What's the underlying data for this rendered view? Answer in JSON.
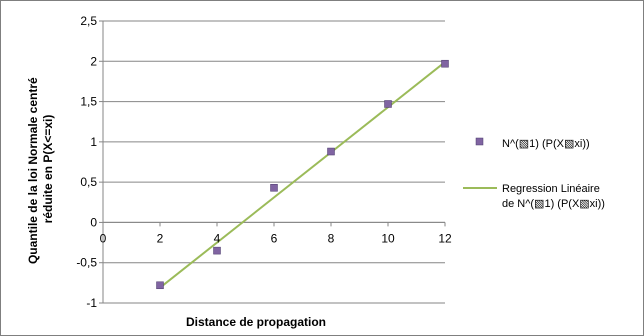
{
  "chart_data": {
    "type": "scatter",
    "xlabel": "Distance de propagation",
    "ylabel_lines": [
      "Quantile de la loi Normale centré",
      "réduite en P(X<=xi)"
    ],
    "xlim": [
      0,
      12
    ],
    "ylim": [
      -1,
      2.5
    ],
    "x_ticks": [
      0,
      2,
      4,
      6,
      8,
      10,
      12
    ],
    "x_tick_labels": [
      "0",
      "2",
      "4",
      "6",
      "8",
      "10",
      "12"
    ],
    "y_ticks": [
      -1,
      -0.5,
      0,
      0.5,
      1,
      1.5,
      2,
      2.5
    ],
    "y_tick_labels": [
      "-1",
      "-0,5",
      "0",
      "0,5",
      "1",
      "1,5",
      "2",
      "2,5"
    ],
    "gridlines": "horizontal",
    "legend_position": "right",
    "series": [
      {
        "name": "N^(▧1)  (P(X▧xi))",
        "kind": "markers",
        "color": "#8064a2",
        "x": [
          2,
          4,
          6,
          8,
          10,
          12
        ],
        "y": [
          -0.78,
          -0.35,
          0.43,
          0.88,
          1.47,
          1.97
        ]
      },
      {
        "name_lines": [
          "Regression Linéaire",
          "de N^(▧1)  (P(X▧xi))"
        ],
        "kind": "line",
        "color": "#9bbb59",
        "x": [
          2,
          12
        ],
        "y": [
          -0.81,
          1.99
        ]
      }
    ]
  }
}
